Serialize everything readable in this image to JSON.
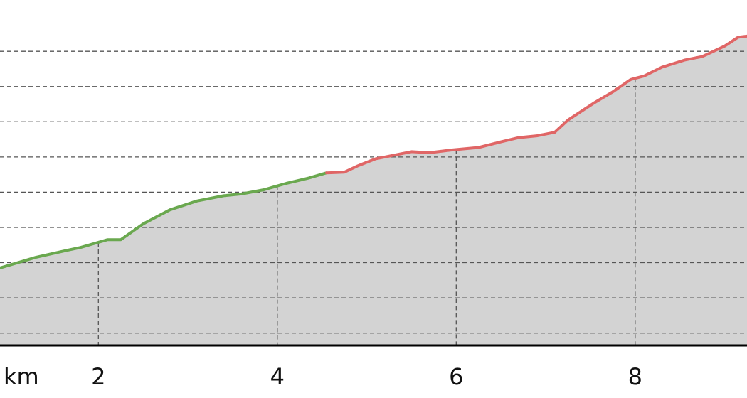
{
  "chart_data": {
    "type": "area",
    "title": "",
    "xlabel": "km",
    "ylabel": "",
    "xlim": [
      0.9,
      9.25
    ],
    "ylim": [
      0,
      9
    ],
    "x_ticks": [
      {
        "value": 2,
        "label": "2"
      },
      {
        "value": 4,
        "label": "4"
      },
      {
        "value": 6,
        "label": "6"
      },
      {
        "value": 8,
        "label": "8"
      }
    ],
    "y_gridlines": [
      0.35,
      1.35,
      2.35,
      3.35,
      4.35,
      5.35,
      6.35,
      7.35,
      8.35
    ],
    "grid": true,
    "legend": "none",
    "colors": {
      "fill": "#d3d3d3",
      "ascent_moderate": "#6aa84f",
      "ascent_steep": "#e06666",
      "grid": "#555555",
      "axis": "#000000"
    },
    "series": [
      {
        "color_key": "ascent_moderate",
        "x": [
          0.9,
          1.3,
          1.65,
          1.8,
          2.1,
          2.25,
          2.5,
          2.8,
          3.1,
          3.4,
          3.6,
          3.85,
          4.1,
          4.35,
          4.55
        ],
        "y": [
          2.2,
          2.5,
          2.7,
          2.78,
          3.0,
          3.0,
          3.45,
          3.85,
          4.1,
          4.25,
          4.3,
          4.42,
          4.6,
          4.75,
          4.9
        ]
      },
      {
        "color_key": "ascent_steep",
        "x": [
          4.55,
          4.75,
          4.9,
          5.1,
          5.3,
          5.5,
          5.7,
          5.95,
          6.25,
          6.5,
          6.7,
          6.9,
          7.1,
          7.25,
          7.55,
          7.75,
          7.95,
          8.1,
          8.3,
          8.55,
          8.75,
          9.0,
          9.15,
          9.25
        ],
        "y": [
          4.9,
          4.92,
          5.1,
          5.3,
          5.4,
          5.5,
          5.47,
          5.55,
          5.62,
          5.78,
          5.9,
          5.95,
          6.05,
          6.4,
          6.9,
          7.2,
          7.55,
          7.65,
          7.9,
          8.1,
          8.2,
          8.5,
          8.75,
          8.78
        ]
      }
    ]
  }
}
